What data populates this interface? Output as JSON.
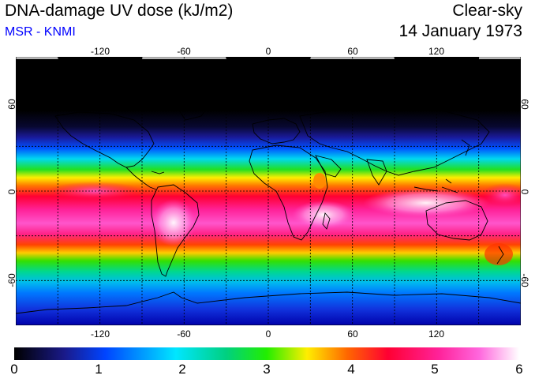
{
  "header": {
    "title": "DNA-damage UV dose (kJ/m2)",
    "source": "MSR - KNMI",
    "sky_condition": "Clear-sky",
    "date": "14 January 1973"
  },
  "colors": {
    "source_text": "#0000ff",
    "background_black": "#000000",
    "gridline": "#000000"
  },
  "map": {
    "projection": "equirectangular",
    "lon_range": [
      -180,
      180
    ],
    "lat_range": [
      -90,
      90
    ],
    "graticule": "dashed every 30 degrees",
    "lon_ticks": [
      "-120",
      "-60",
      "0",
      "60",
      "120"
    ],
    "lat_ticks_left": [
      "60",
      "0",
      "-60"
    ],
    "lat_ticks_right": [
      "60",
      "0",
      "-60"
    ]
  },
  "colorbar": {
    "min": 0,
    "max": 6,
    "labels": [
      "0",
      "1",
      "2",
      "3",
      "4",
      "5",
      "6"
    ],
    "stops": [
      "#000000",
      "#1a1a8a",
      "#0044ff",
      "#00e6ff",
      "#00d080",
      "#22ee00",
      "#ffee00",
      "#ff6600",
      "#ff0033",
      "#ff2299",
      "#ff66dd",
      "#ffffff"
    ]
  }
}
